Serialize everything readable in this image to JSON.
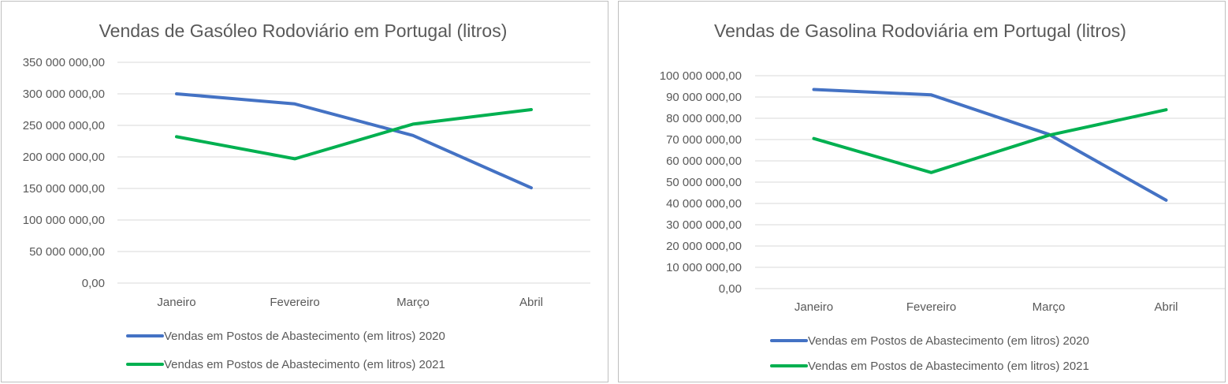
{
  "chart_data": [
    {
      "type": "line",
      "title": "Vendas de Gasóleo Rodoviário em Portugal (litros)",
      "xlabel": "",
      "ylabel": "",
      "categories": [
        "Janeiro",
        "Fevereiro",
        "Março",
        "Abril"
      ],
      "ylim": [
        0,
        350000000
      ],
      "yticks": [
        0,
        50000000,
        100000000,
        150000000,
        200000000,
        250000000,
        300000000,
        350000000
      ],
      "ytick_labels": [
        "0,00",
        "50 000 000,00",
        "100 000 000,00",
        "150 000 000,00",
        "200 000 000,00",
        "250 000 000,00",
        "300 000 000,00",
        "350 000 000,00"
      ],
      "grid": true,
      "legend_position": "bottom",
      "series": [
        {
          "name": "Vendas em Postos de Abastecimento  (em litros) 2020",
          "color": "#4472c4",
          "values": [
            300000000,
            284000000,
            234000000,
            151000000
          ]
        },
        {
          "name": "Vendas em Postos de Abastecimento  (em litros) 2021",
          "color": "#00b050",
          "values": [
            232000000,
            197000000,
            252000000,
            275000000
          ]
        }
      ]
    },
    {
      "type": "line",
      "title": "Vendas de Gasolina Rodoviária em Portugal (litros)",
      "xlabel": "",
      "ylabel": "",
      "categories": [
        "Janeiro",
        "Fevereiro",
        "Março",
        "Abril"
      ],
      "ylim": [
        0,
        100000000
      ],
      "yticks": [
        0,
        10000000,
        20000000,
        30000000,
        40000000,
        50000000,
        60000000,
        70000000,
        80000000,
        90000000,
        100000000
      ],
      "ytick_labels": [
        "0,00",
        "10 000 000,00",
        "20 000 000,00",
        "30 000 000,00",
        "40 000 000,00",
        "50 000 000,00",
        "60 000 000,00",
        "70 000 000,00",
        "80 000 000,00",
        "90 000 000,00",
        "100 000 000,00"
      ],
      "grid": true,
      "legend_position": "bottom",
      "series": [
        {
          "name": "Vendas em Postos de Abastecimento  (em litros) 2020",
          "color": "#4472c4",
          "values": [
            93500000,
            91000000,
            72500000,
            41500000
          ]
        },
        {
          "name": "Vendas em Postos de Abastecimento  (em litros) 2021",
          "color": "#00b050",
          "values": [
            70500000,
            54500000,
            72000000,
            84000000
          ]
        }
      ]
    }
  ]
}
